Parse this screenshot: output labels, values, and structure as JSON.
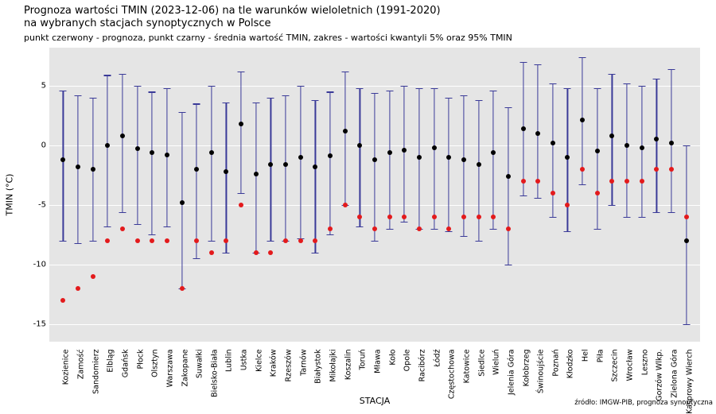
{
  "title": {
    "line1": "Prognoza wartości TMIN (2023-12-06) na tle warunków wieloletnich (1991-2020)",
    "line2": "na wybranych stacjach synoptycznych w Polsce",
    "subtitle": "punkt czerwony - prognoza, punkt czarny - średnia wartość TMIN, zakres - wartości kwantyli 5% oraz 95% TMIN"
  },
  "axes": {
    "ylabel": "TMIN (°C)",
    "xlabel": "STACJA",
    "ylim": [
      -16.5,
      8.2
    ],
    "yticks": [
      -15,
      -10,
      -5,
      0,
      5
    ],
    "label_fontsize": 11,
    "tick_fontsize": 10
  },
  "colors": {
    "background": "#ffffff",
    "plot_bg": "#e5e5e5",
    "grid": "#ffffff",
    "whisker": "#3a3a98",
    "mean_dot": "#000000",
    "forecast_dot": "#e31a1c",
    "text": "#000000"
  },
  "source": "źródło: IMGW-PIB, prognoza synoptyczna",
  "stations": [
    {
      "name": "Kozienice",
      "q5": -8.0,
      "q95": 4.6,
      "mean": -1.2,
      "fcst": -13.0
    },
    {
      "name": "Zamość",
      "q5": -8.2,
      "q95": 4.2,
      "mean": -1.8,
      "fcst": -12.0
    },
    {
      "name": "Sandomierz",
      "q5": -8.0,
      "q95": 4.0,
      "mean": -2.0,
      "fcst": -11.0
    },
    {
      "name": "Elbląg",
      "q5": -6.8,
      "q95": 5.9,
      "mean": 0.0,
      "fcst": -8.0
    },
    {
      "name": "Gdańsk",
      "q5": -5.6,
      "q95": 6.0,
      "mean": 0.8,
      "fcst": -7.0
    },
    {
      "name": "Płock",
      "q5": -6.6,
      "q95": 5.0,
      "mean": -0.3,
      "fcst": -8.0
    },
    {
      "name": "Olsztyn",
      "q5": -7.5,
      "q95": 4.5,
      "mean": -0.6,
      "fcst": -8.0
    },
    {
      "name": "Warszawa",
      "q5": -6.8,
      "q95": 4.8,
      "mean": -0.8,
      "fcst": -8.0
    },
    {
      "name": "Zakopane",
      "q5": -12.0,
      "q95": 2.8,
      "mean": -4.8,
      "fcst": -12.0
    },
    {
      "name": "Suwałki",
      "q5": -9.5,
      "q95": 3.5,
      "mean": -2.0,
      "fcst": -8.0
    },
    {
      "name": "Bielsko-Biała",
      "q5": -8.0,
      "q95": 5.0,
      "mean": -0.6,
      "fcst": -9.0
    },
    {
      "name": "Lublin",
      "q5": -9.0,
      "q95": 3.6,
      "mean": -2.2,
      "fcst": -8.0
    },
    {
      "name": "Ustka",
      "q5": -4.0,
      "q95": 6.2,
      "mean": 1.8,
      "fcst": -5.0
    },
    {
      "name": "Kielce",
      "q5": -9.0,
      "q95": 3.6,
      "mean": -2.4,
      "fcst": -9.0
    },
    {
      "name": "Kraków",
      "q5": -8.0,
      "q95": 4.0,
      "mean": -1.6,
      "fcst": -9.0
    },
    {
      "name": "Rzeszów",
      "q5": -8.0,
      "q95": 4.2,
      "mean": -1.6,
      "fcst": -8.0
    },
    {
      "name": "Tarnów",
      "q5": -7.8,
      "q95": 5.0,
      "mean": -1.0,
      "fcst": -8.0
    },
    {
      "name": "Białystok",
      "q5": -9.0,
      "q95": 3.8,
      "mean": -1.8,
      "fcst": -8.0
    },
    {
      "name": "Mikołajki",
      "q5": -7.5,
      "q95": 4.5,
      "mean": -0.9,
      "fcst": -7.0
    },
    {
      "name": "Koszalin",
      "q5": -5.0,
      "q95": 6.2,
      "mean": 1.2,
      "fcst": -5.0
    },
    {
      "name": "Toruń",
      "q5": -6.8,
      "q95": 4.8,
      "mean": 0.0,
      "fcst": -6.0
    },
    {
      "name": "Mława",
      "q5": -8.0,
      "q95": 4.4,
      "mean": -1.2,
      "fcst": -7.0
    },
    {
      "name": "Koło",
      "q5": -7.0,
      "q95": 4.6,
      "mean": -0.6,
      "fcst": -6.0
    },
    {
      "name": "Opole",
      "q5": -6.4,
      "q95": 5.0,
      "mean": -0.4,
      "fcst": -6.0
    },
    {
      "name": "Racibórz",
      "q5": -7.0,
      "q95": 4.8,
      "mean": -1.0,
      "fcst": -7.0
    },
    {
      "name": "Łódź",
      "q5": -7.0,
      "q95": 4.8,
      "mean": -0.2,
      "fcst": -6.0
    },
    {
      "name": "Częstochowa",
      "q5": -7.2,
      "q95": 4.0,
      "mean": -1.0,
      "fcst": -7.0
    },
    {
      "name": "Katowice",
      "q5": -7.6,
      "q95": 4.2,
      "mean": -1.2,
      "fcst": -6.0
    },
    {
      "name": "Siedlce",
      "q5": -8.0,
      "q95": 3.8,
      "mean": -1.6,
      "fcst": -6.0
    },
    {
      "name": "Wieluń",
      "q5": -7.0,
      "q95": 4.6,
      "mean": -0.6,
      "fcst": -6.0
    },
    {
      "name": "Jelenia Góra",
      "q5": -10.0,
      "q95": 3.2,
      "mean": -2.6,
      "fcst": -7.0
    },
    {
      "name": "Kołobrzeg",
      "q5": -4.2,
      "q95": 7.0,
      "mean": 1.4,
      "fcst": -3.0
    },
    {
      "name": "Świnoujście",
      "q5": -4.4,
      "q95": 6.8,
      "mean": 1.0,
      "fcst": -3.0
    },
    {
      "name": "Poznań",
      "q5": -6.0,
      "q95": 5.2,
      "mean": 0.2,
      "fcst": -4.0
    },
    {
      "name": "Kłodzko",
      "q5": -7.2,
      "q95": 4.8,
      "mean": -1.0,
      "fcst": -5.0
    },
    {
      "name": "Hel",
      "q5": -3.3,
      "q95": 7.4,
      "mean": 2.1,
      "fcst": -2.0
    },
    {
      "name": "Piła",
      "q5": -7.0,
      "q95": 4.8,
      "mean": -0.5,
      "fcst": -4.0
    },
    {
      "name": "Szczecin",
      "q5": -5.0,
      "q95": 6.0,
      "mean": 0.8,
      "fcst": -3.0
    },
    {
      "name": "Wrocław",
      "q5": -6.0,
      "q95": 5.2,
      "mean": 0.0,
      "fcst": -3.0
    },
    {
      "name": "Leszno",
      "q5": -6.0,
      "q95": 5.0,
      "mean": -0.2,
      "fcst": -3.0
    },
    {
      "name": "Gorzów Wlkp.",
      "q5": -5.6,
      "q95": 5.6,
      "mean": 0.5,
      "fcst": -2.0
    },
    {
      "name": "Zielona Góra",
      "q5": -5.6,
      "q95": 6.4,
      "mean": 0.2,
      "fcst": -2.0
    },
    {
      "name": "Kasprowy Wierch",
      "q5": -15.0,
      "q95": 0.0,
      "mean": -8.0,
      "fcst": -6.0
    }
  ]
}
